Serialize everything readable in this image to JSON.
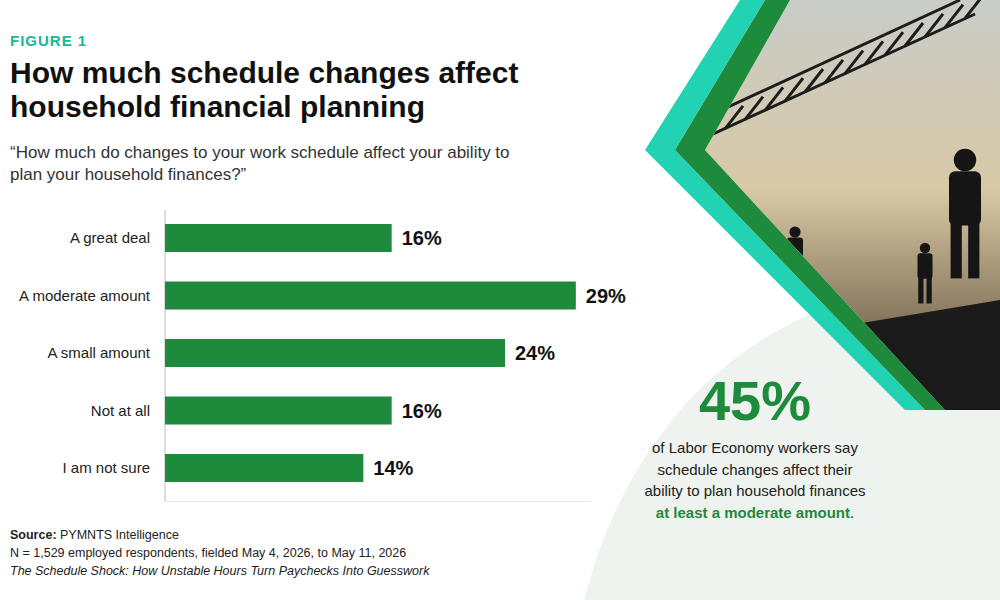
{
  "chart_data": {
    "type": "bar",
    "orientation": "horizontal",
    "figure_label": "FIGURE 1",
    "title": "How much schedule changes affect household financial planning",
    "subtitle": "“How much do changes to your work schedule affect your ability to plan your household finances?”",
    "categories": [
      "A great deal",
      "A moderate amount",
      "A small amount",
      "Not at all",
      "I am not sure"
    ],
    "values": [
      16,
      29,
      24,
      16,
      14
    ],
    "value_labels": [
      "16%",
      "29%",
      "24%",
      "16%",
      "14%"
    ],
    "color": "#1e8a3c",
    "xlim": [
      0,
      30
    ],
    "tick_labels": false,
    "grid": false,
    "data_labels": true,
    "annotations": [
      {
        "label": "45%",
        "text": "of Labor Economy workers say schedule changes affect their ability to plan household finances",
        "highlight": "at least a moderate amount",
        "suffix": "."
      }
    ],
    "source_label": "Source:",
    "source": "PYMNTS Intelligence",
    "note": "N = 1,529 employed respondents, fielded May 4, 2026, to May 11, 2026",
    "report": "The Schedule Shock: How Unstable Hours Turn Paychecks Into Guesswork"
  }
}
